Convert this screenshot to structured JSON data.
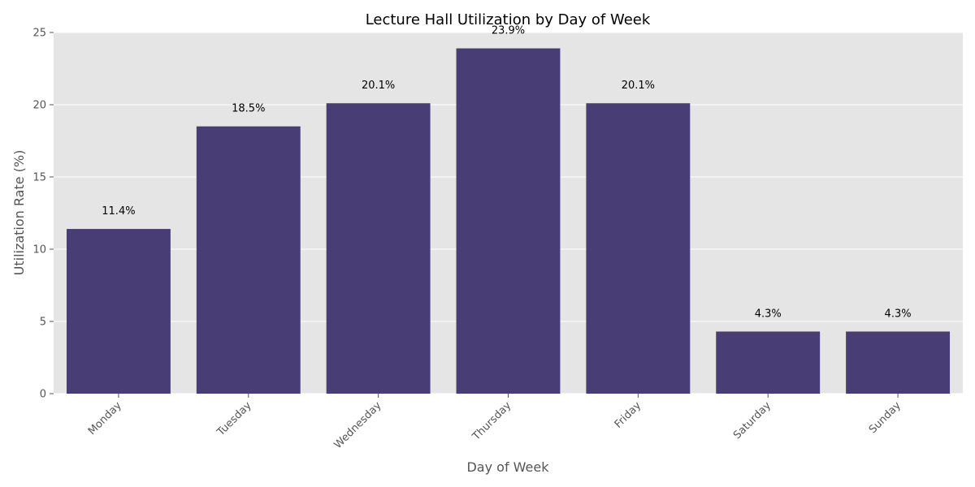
{
  "chart_data": {
    "type": "bar",
    "title": "Lecture Hall Utilization by Day of Week",
    "xlabel": "Day of Week",
    "ylabel": "Utilization Rate (%)",
    "categories": [
      "Monday",
      "Tuesday",
      "Wednesday",
      "Thursday",
      "Friday",
      "Saturday",
      "Sunday"
    ],
    "values": [
      11.4,
      18.5,
      20.1,
      23.9,
      20.1,
      4.3,
      4.3
    ],
    "data_labels": [
      "11.4%",
      "18.5%",
      "20.1%",
      "23.9%",
      "20.1%",
      "4.3%",
      "4.3%"
    ],
    "ylim": [
      0,
      25
    ],
    "yticks": [
      0,
      5,
      10,
      15,
      20,
      25
    ],
    "grid": true,
    "bar_color": "#483D75",
    "background_color": "#E5E5E5"
  }
}
